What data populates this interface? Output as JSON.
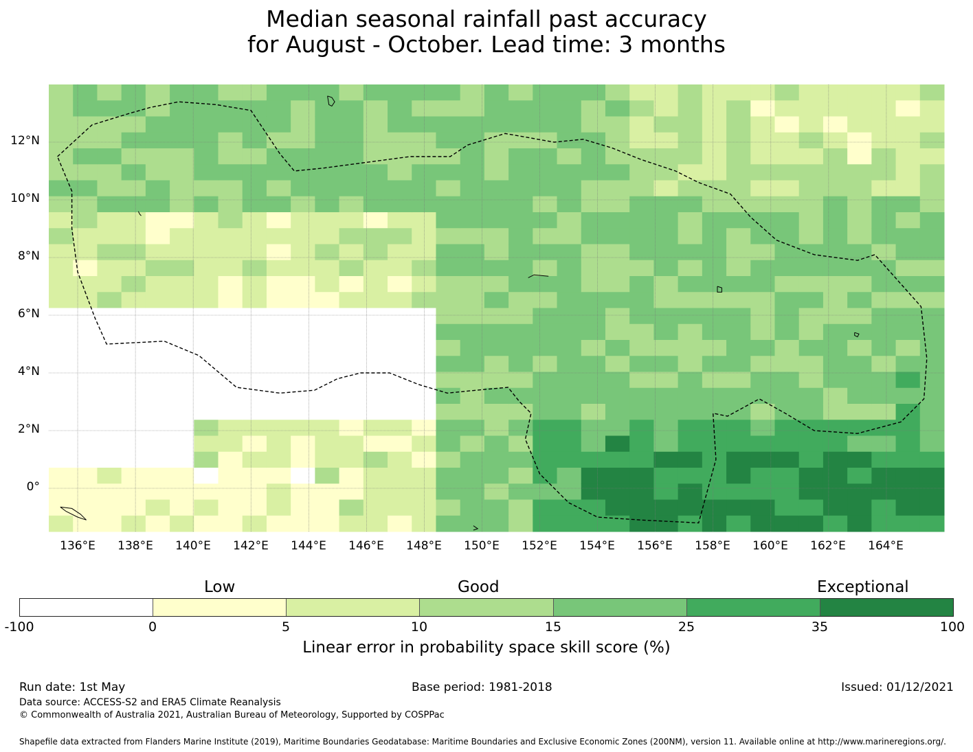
{
  "title": {
    "line1": "Median seasonal rainfall past accuracy",
    "line2": "for August - October. Lead time: 3 months"
  },
  "map": {
    "lat_ticks": [
      "12°N",
      "10°N",
      "8°N",
      "6°N",
      "4°N",
      "2°N",
      "0°"
    ],
    "lon_ticks": [
      "136°E",
      "138°E",
      "140°E",
      "142°E",
      "144°E",
      "146°E",
      "148°E",
      "150°E",
      "152°E",
      "154°E",
      "156°E",
      "158°E",
      "160°E",
      "162°E",
      "164°E"
    ],
    "extent_lon": [
      135,
      166
    ],
    "extent_lat": [
      -1.5,
      14
    ],
    "grid": "dotted gray",
    "eez_boundary": "dashed black",
    "coastlines": "black"
  },
  "colorbar": {
    "categories": [
      "Low",
      "Good",
      "Exceptional"
    ],
    "bounds": [
      "-100",
      "0",
      "5",
      "10",
      "15",
      "25",
      "35",
      "100"
    ],
    "colors": [
      "#ffffff",
      "#ffffcc",
      "#d9f0a3",
      "#addd8e",
      "#78c679",
      "#41ab5d",
      "#238443"
    ],
    "label": "Linear error in probability space skill score (%)"
  },
  "footer": {
    "run_date": "Run date: 1st May",
    "base_period": "Base period: 1981-2018",
    "issued": "Issued: 01/12/2021",
    "data_source": "Data source: ACCESS-S2 and ERA5 Climate Reanalysis",
    "copyright": "© Commonwealth of Australia 2021, Australian Bureau of Meteorology, Supported by COSPPac",
    "shapefile": "Shapefile data extracted from Flanders Marine Institute (2019), Maritime Boundaries Geodatabase: Maritime Boundaries and Exclusive Economic Zones (200NM), version 11. Available online at http://www.marineregions.org/."
  }
}
